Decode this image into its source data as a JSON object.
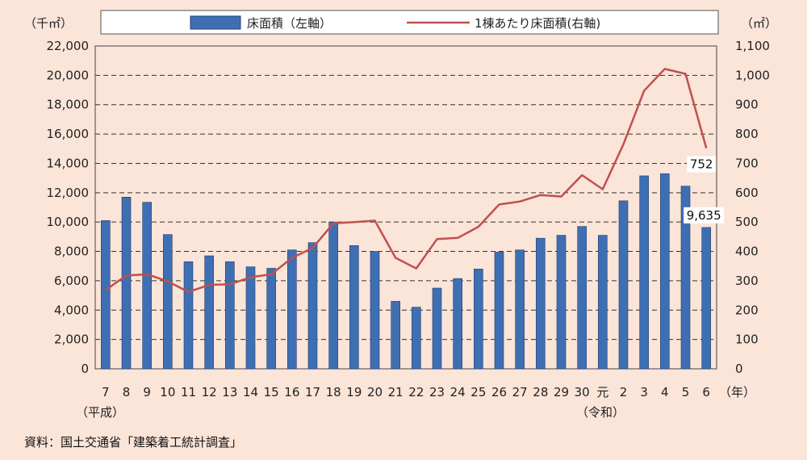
{
  "colors": {
    "bar": "#3f6fb3",
    "bar_stroke": "#1f3f73",
    "line": "#c0504d",
    "background": "#fbe4d8"
  },
  "source_text": "資料：国土交通省「建築着工統計調査」",
  "chart_data": {
    "type": "bar",
    "categories": [
      "7",
      "8",
      "9",
      "10",
      "11",
      "12",
      "13",
      "14",
      "15",
      "16",
      "17",
      "18",
      "19",
      "20",
      "21",
      "22",
      "23",
      "24",
      "25",
      "26",
      "27",
      "28",
      "29",
      "30",
      "元",
      "2",
      "3",
      "4",
      "5",
      "6"
    ],
    "era_labels": {
      "heisei": "（平成）",
      "reiwa": "（令和）"
    },
    "x_unit": "（年）",
    "y_left": {
      "unit": "（千㎡）",
      "range": [
        0,
        22000
      ],
      "ticks": [
        "0",
        "2,000",
        "4,000",
        "6,000",
        "8,000",
        "10,000",
        "12,000",
        "14,000",
        "16,000",
        "18,000",
        "20,000",
        "22,000"
      ]
    },
    "y_right": {
      "unit": "（㎡）",
      "range": [
        0,
        1100
      ],
      "ticks": [
        "0",
        "100",
        "200",
        "300",
        "400",
        "500",
        "600",
        "700",
        "800",
        "900",
        "1,000",
        "1,100"
      ]
    },
    "grid": true,
    "legend_position": "top",
    "series": [
      {
        "name": "床面積（左軸）",
        "type": "bar",
        "axis": "left",
        "values": [
          10100,
          11700,
          11350,
          9150,
          7300,
          7700,
          7300,
          6950,
          6850,
          8100,
          8600,
          10000,
          8400,
          8000,
          4600,
          4200,
          5500,
          6150,
          6800,
          7950,
          8100,
          8900,
          9100,
          9700,
          9100,
          11450,
          13150,
          13300,
          12450,
          9635
        ]
      },
      {
        "name": "1棟あたり床面積(右軸)",
        "type": "line",
        "axis": "right",
        "values": [
          268,
          318,
          322,
          298,
          262,
          286,
          288,
          312,
          322,
          378,
          412,
          496,
          500,
          505,
          378,
          342,
          442,
          446,
          484,
          560,
          570,
          592,
          587,
          660,
          612,
          765,
          948,
          1022,
          1005,
          752
        ]
      }
    ],
    "annotations": [
      {
        "text": "752",
        "series": 1,
        "index": 29
      },
      {
        "text": "9,635",
        "series": 0,
        "index": 29
      }
    ]
  }
}
